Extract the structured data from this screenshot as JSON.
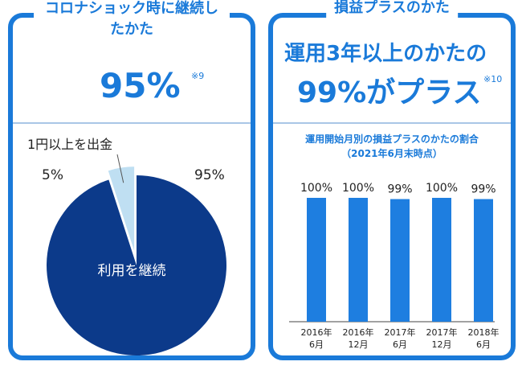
{
  "left": {
    "title": "コロナショック時に継続したかた",
    "big_value": "95%",
    "note": "※9"
  },
  "right": {
    "title": "損益プラスのかた",
    "headline_line1": "運用3年以上のかたの",
    "headline_line2": "99%がプラス",
    "note": "※10"
  },
  "colors": {
    "accent": "#1a7ad9",
    "pie_main": "#0c3a8a",
    "pie_small": "#bfdff2",
    "bar": "#1e7ee0"
  },
  "chart_data": [
    {
      "type": "pie",
      "title": "",
      "callout": "1円以上を出金",
      "slices": [
        {
          "label": "利用を継続",
          "value": 95,
          "value_label": "95%"
        },
        {
          "label": "1円以上を出金",
          "value": 5,
          "value_label": "5%"
        }
      ]
    },
    {
      "type": "bar",
      "title": "運用開始月別の損益プラスのかたの割合",
      "subtitle": "（2021年6月末時点）",
      "categories": [
        [
          "2016年",
          "6月"
        ],
        [
          "2016年",
          "12月"
        ],
        [
          "2017年",
          "6月"
        ],
        [
          "2017年",
          "12月"
        ],
        [
          "2018年",
          "6月"
        ]
      ],
      "values": [
        100,
        100,
        99,
        100,
        99
      ],
      "value_labels": [
        "100%",
        "100%",
        "99%",
        "100%",
        "99%"
      ],
      "ylim": [
        0,
        100
      ]
    }
  ]
}
